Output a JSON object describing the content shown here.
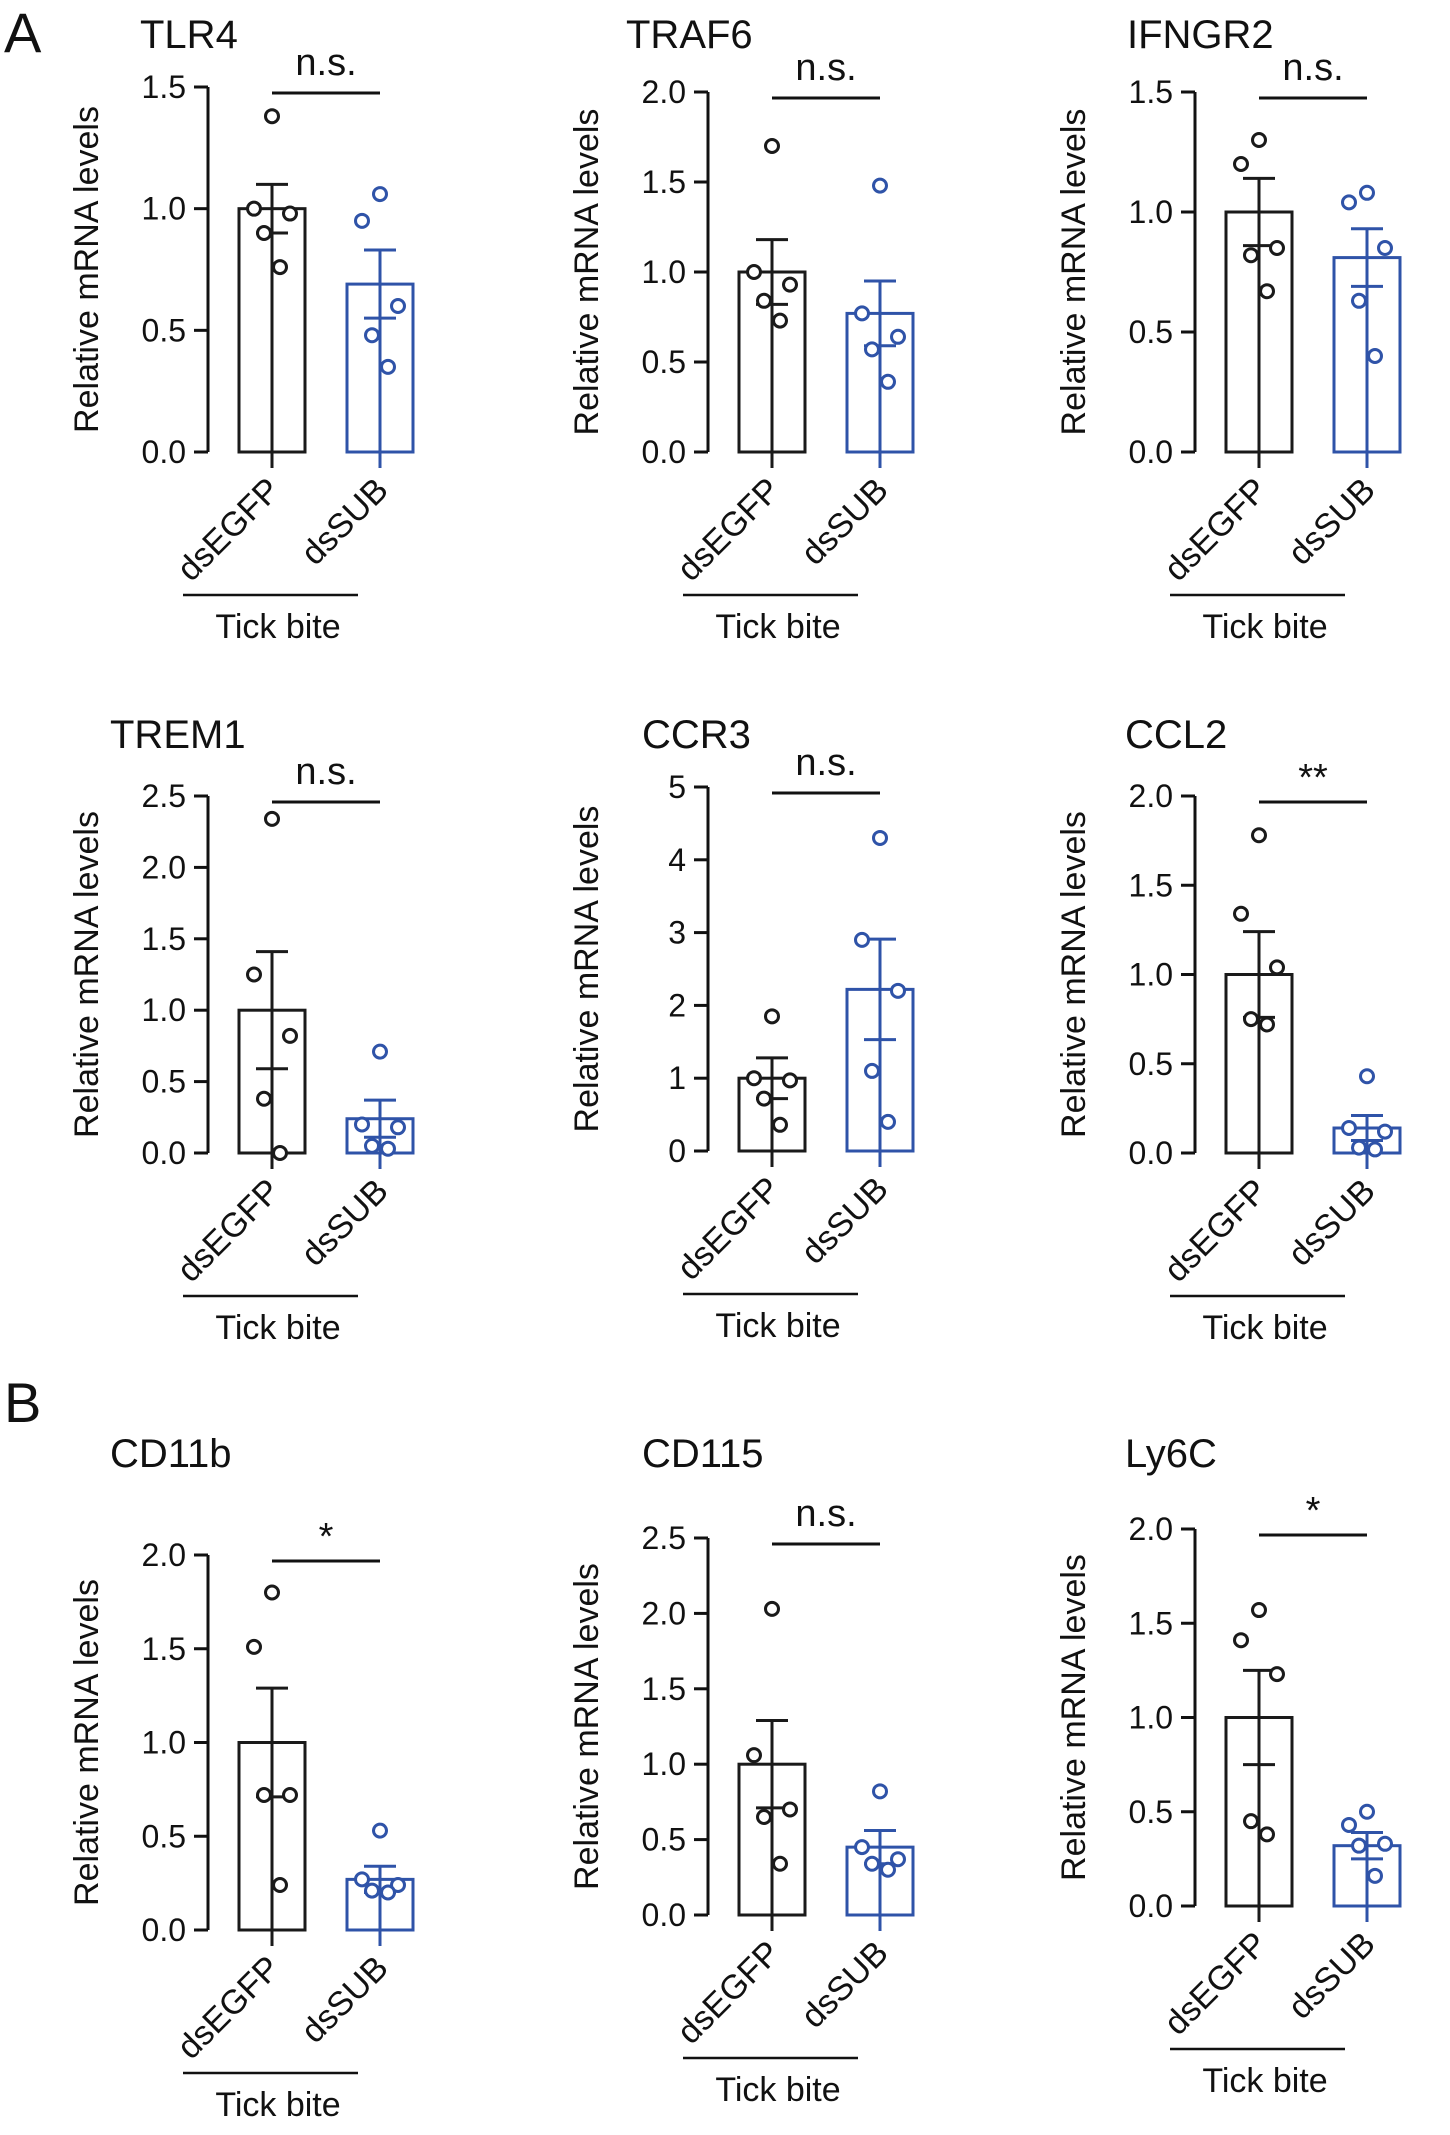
{
  "figure": {
    "panel_labels": [
      "A",
      "B"
    ],
    "colors": {
      "control": "#1a1a1a",
      "knockdown": "#2f53a8"
    }
  },
  "chart_data": [
    {
      "type": "bar",
      "panel": "A",
      "title": "TLR4",
      "ylabel": "Relative mRNA levels",
      "categories": [
        "dsEGFP",
        "dsSUB"
      ],
      "group_label": "Tick bite",
      "ylim": [
        0,
        1.5
      ],
      "yticks": [
        "0.0",
        "0.5",
        "1.0",
        "1.5"
      ],
      "means": [
        1.0,
        0.69
      ],
      "sem": [
        0.1,
        0.14
      ],
      "points": [
        [
          1.38,
          1.0,
          0.98,
          0.9,
          0.76
        ],
        [
          1.06,
          0.95,
          0.6,
          0.48,
          0.35
        ]
      ],
      "significance": "n.s."
    },
    {
      "type": "bar",
      "panel": "A",
      "title": "TRAF6",
      "ylabel": "Relative mRNA levels",
      "categories": [
        "dsEGFP",
        "dsSUB"
      ],
      "group_label": "Tick bite",
      "ylim": [
        0,
        2.0
      ],
      "yticks": [
        "0.0",
        "0.5",
        "1.0",
        "1.5",
        "2.0"
      ],
      "means": [
        1.0,
        0.77
      ],
      "sem": [
        0.18,
        0.18
      ],
      "points": [
        [
          1.7,
          1.0,
          0.93,
          0.84,
          0.73
        ],
        [
          1.48,
          0.77,
          0.64,
          0.57,
          0.39
        ]
      ],
      "significance": "n.s."
    },
    {
      "type": "bar",
      "panel": "A",
      "title": "IFNGR2",
      "ylabel": "Relative mRNA levels",
      "categories": [
        "dsEGFP",
        "dsSUB"
      ],
      "group_label": "Tick bite",
      "ylim": [
        0,
        1.5
      ],
      "yticks": [
        "0.0",
        "0.5",
        "1.0",
        "1.5"
      ],
      "means": [
        1.0,
        0.81
      ],
      "sem": [
        0.14,
        0.12
      ],
      "points": [
        [
          1.3,
          1.2,
          0.85,
          0.82,
          0.67
        ],
        [
          1.08,
          1.04,
          0.85,
          0.63,
          0.4
        ]
      ],
      "significance": "n.s."
    },
    {
      "type": "bar",
      "panel": "A",
      "title": "TREM1",
      "ylabel": "Relative mRNA levels",
      "categories": [
        "dsEGFP",
        "dsSUB"
      ],
      "group_label": "Tick bite",
      "ylim": [
        0,
        2.5
      ],
      "yticks": [
        "0.0",
        "0.5",
        "1.0",
        "1.5",
        "2.0",
        "2.5"
      ],
      "means": [
        1.0,
        0.24
      ],
      "sem": [
        0.41,
        0.13
      ],
      "points": [
        [
          2.34,
          1.25,
          0.82,
          0.38,
          0.0
        ],
        [
          0.71,
          0.2,
          0.18,
          0.05,
          0.03
        ]
      ],
      "significance": "n.s."
    },
    {
      "type": "bar",
      "panel": "A",
      "title": "CCR3",
      "ylabel": "Relative mRNA levels",
      "categories": [
        "dsEGFP",
        "dsSUB"
      ],
      "group_label": "Tick bite",
      "ylim": [
        0,
        5
      ],
      "yticks": [
        "0",
        "1",
        "2",
        "3",
        "4",
        "5"
      ],
      "means": [
        1.0,
        2.22
      ],
      "sem": [
        0.28,
        0.69
      ],
      "points": [
        [
          1.85,
          1.0,
          0.97,
          0.72,
          0.36
        ],
        [
          4.3,
          2.9,
          2.2,
          1.1,
          0.4
        ]
      ],
      "significance": "n.s."
    },
    {
      "type": "bar",
      "panel": "A",
      "title": "CCL2",
      "ylabel": "Relative mRNA levels",
      "categories": [
        "dsEGFP",
        "dsSUB"
      ],
      "group_label": "Tick bite",
      "ylim": [
        0,
        2.0
      ],
      "yticks": [
        "0.0",
        "0.5",
        "1.0",
        "1.5",
        "2.0"
      ],
      "means": [
        1.0,
        0.14
      ],
      "sem": [
        0.24,
        0.07
      ],
      "points": [
        [
          1.78,
          1.34,
          1.04,
          0.75,
          0.72
        ],
        [
          0.43,
          0.14,
          0.12,
          0.03,
          0.02
        ]
      ],
      "significance": "**"
    },
    {
      "type": "bar",
      "panel": "B",
      "title": "CD11b",
      "ylabel": "Relative mRNA levels",
      "categories": [
        "dsEGFP",
        "dsSUB"
      ],
      "group_label": "Tick bite",
      "ylim": [
        0,
        2.0
      ],
      "yticks": [
        "0.0",
        "0.5",
        "1.0",
        "1.5",
        "2.0"
      ],
      "means": [
        1.0,
        0.27
      ],
      "sem": [
        0.29,
        0.07
      ],
      "points": [
        [
          1.8,
          1.51,
          0.72,
          0.72,
          0.24
        ],
        [
          0.53,
          0.27,
          0.24,
          0.21,
          0.2
        ]
      ],
      "significance": "*"
    },
    {
      "type": "bar",
      "panel": "B",
      "title": "CD115",
      "ylabel": "Relative mRNA levels",
      "categories": [
        "dsEGFP",
        "dsSUB"
      ],
      "group_label": "Tick bite",
      "ylim": [
        0,
        2.5
      ],
      "yticks": [
        "0.0",
        "0.5",
        "1.0",
        "1.5",
        "2.0",
        "2.5"
      ],
      "means": [
        1.0,
        0.45
      ],
      "sem": [
        0.29,
        0.11
      ],
      "points": [
        [
          2.03,
          1.06,
          0.7,
          0.65,
          0.34
        ],
        [
          0.82,
          0.45,
          0.37,
          0.34,
          0.3
        ]
      ],
      "significance": "n.s."
    },
    {
      "type": "bar",
      "panel": "B",
      "title": "Ly6C",
      "ylabel": "Relative mRNA levels",
      "categories": [
        "dsEGFP",
        "dsSUB"
      ],
      "group_label": "Tick bite",
      "ylim": [
        0,
        2.0
      ],
      "yticks": [
        "0.0",
        "0.5",
        "1.0",
        "1.5",
        "2.0"
      ],
      "means": [
        1.0,
        0.32
      ],
      "sem": [
        0.25,
        0.07
      ],
      "points": [
        [
          1.57,
          1.41,
          1.23,
          0.45,
          0.38
        ],
        [
          0.5,
          0.43,
          0.33,
          0.32,
          0.16
        ]
      ],
      "significance": "*"
    }
  ]
}
